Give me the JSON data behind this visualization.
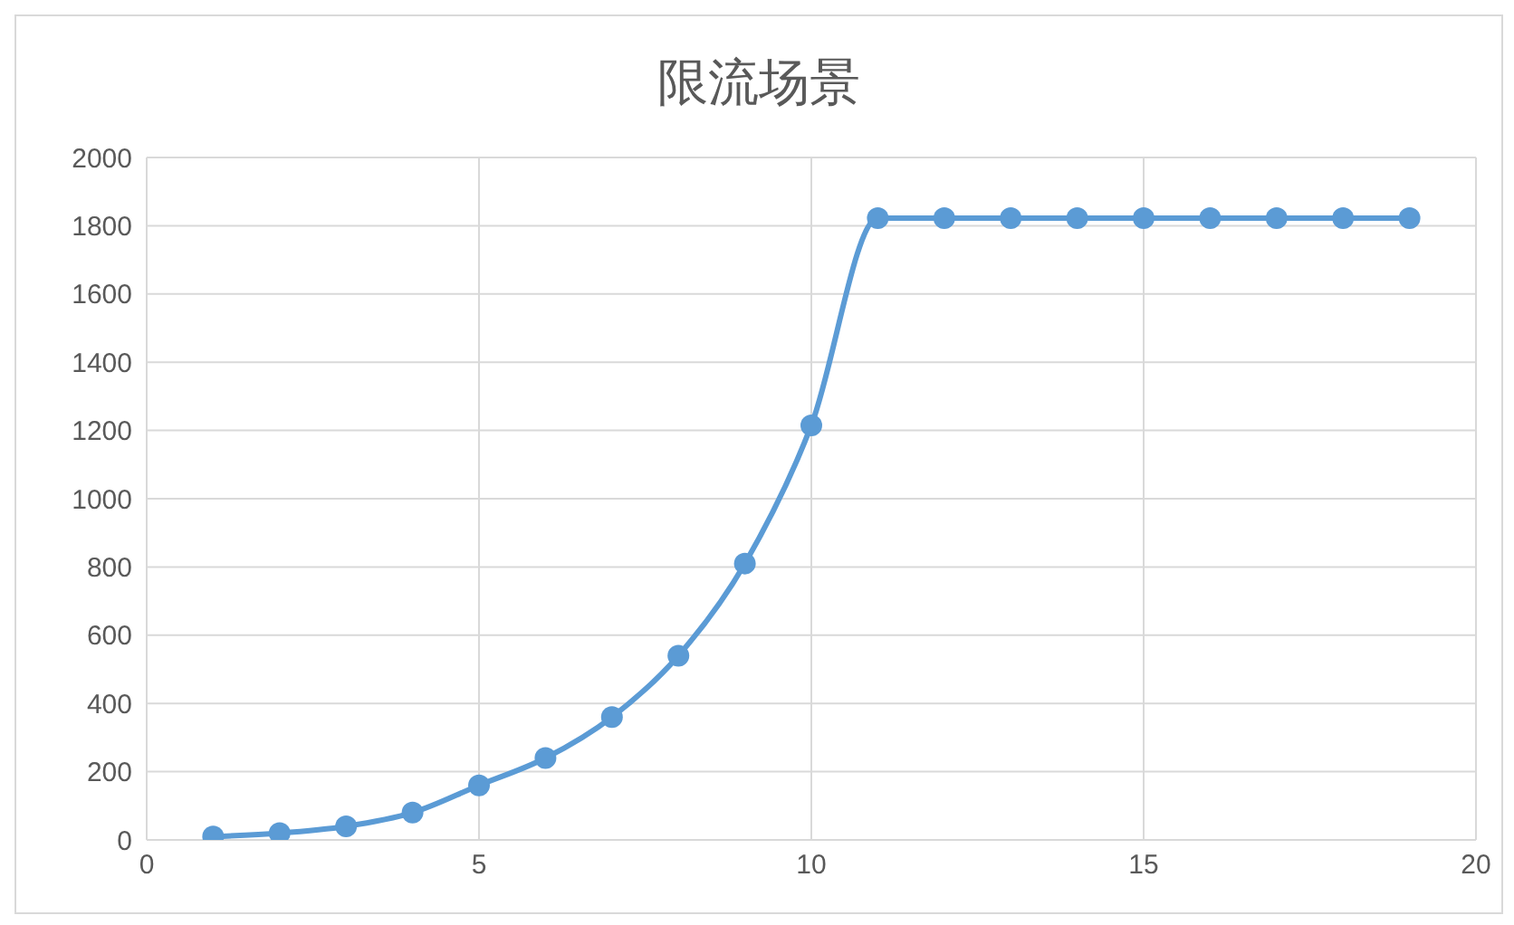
{
  "chart_data": {
    "type": "line",
    "title": "限流场景",
    "x": [
      1,
      2,
      3,
      4,
      5,
      6,
      7,
      8,
      9,
      10,
      11,
      12,
      13,
      14,
      15,
      16,
      17,
      18,
      19
    ],
    "series": [
      {
        "color": "#5b9bd5",
        "values": [
          10,
          20,
          40,
          80,
          160,
          240,
          360,
          540,
          810,
          1215,
          1822,
          1822,
          1822,
          1822,
          1822,
          1822,
          1822,
          1822,
          1822
        ]
      }
    ],
    "xlim": [
      0,
      20
    ],
    "xticks": [
      0,
      5,
      10,
      15,
      20
    ],
    "ylim": [
      0,
      2000
    ],
    "yticks": [
      0,
      200,
      400,
      600,
      800,
      1000,
      1200,
      1400,
      1600,
      1800,
      2000
    ],
    "grid": true,
    "marker": "circle",
    "legend": false
  }
}
